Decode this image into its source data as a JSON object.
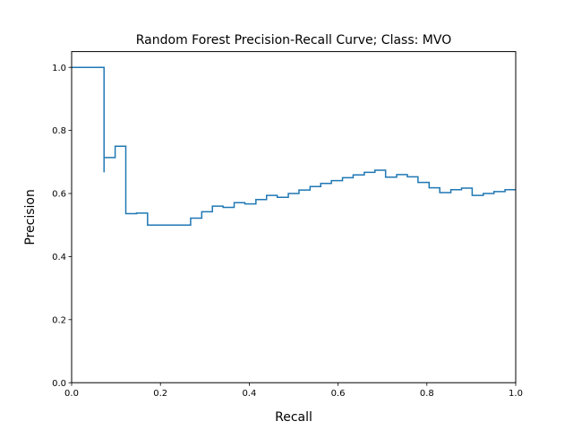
{
  "chart_data": {
    "type": "line",
    "drawstyle": "steps-post",
    "title": "Random Forest Precision-Recall Curve; Class: MVO",
    "xlabel": "Recall",
    "ylabel": "Precision",
    "xlim": [
      0.0,
      1.0
    ],
    "ylim": [
      0.0,
      1.05
    ],
    "grid": false,
    "xticks": [
      0.0,
      0.2,
      0.4,
      0.6,
      0.8,
      1.0
    ],
    "xtick_labels": [
      "0.0",
      "0.2",
      "0.4",
      "0.6",
      "0.8",
      "1.0"
    ],
    "yticks": [
      0.0,
      0.2,
      0.4,
      0.6,
      0.8,
      1.0
    ],
    "ytick_labels": [
      "0.0",
      "0.2",
      "0.4",
      "0.6",
      "0.8",
      "1.0"
    ],
    "line_color": "#1f77b4",
    "series": [
      {
        "recall": [
          1.0,
          0.976,
          0.951,
          0.927,
          0.902,
          0.878,
          0.854,
          0.829,
          0.805,
          0.78,
          0.756,
          0.732,
          0.707,
          0.683,
          0.659,
          0.634,
          0.61,
          0.585,
          0.561,
          0.537,
          0.512,
          0.488,
          0.463,
          0.439,
          0.415,
          0.39,
          0.366,
          0.341,
          0.317,
          0.293,
          0.268,
          0.244,
          0.22,
          0.195,
          0.171,
          0.146,
          0.122,
          0.098,
          0.073,
          0.073,
          0.0
        ],
        "precision": [
          0.612,
          0.606,
          0.6,
          0.594,
          0.617,
          0.612,
          0.603,
          0.618,
          0.635,
          0.653,
          0.66,
          0.652,
          0.674,
          0.667,
          0.659,
          0.65,
          0.641,
          0.632,
          0.622,
          0.611,
          0.6,
          0.588,
          0.594,
          0.581,
          0.567,
          0.571,
          0.556,
          0.56,
          0.542,
          0.522,
          0.5,
          0.5,
          0.5,
          0.5,
          0.538,
          0.536,
          0.75,
          0.714,
          0.667,
          1.0,
          1.0
        ]
      }
    ]
  }
}
